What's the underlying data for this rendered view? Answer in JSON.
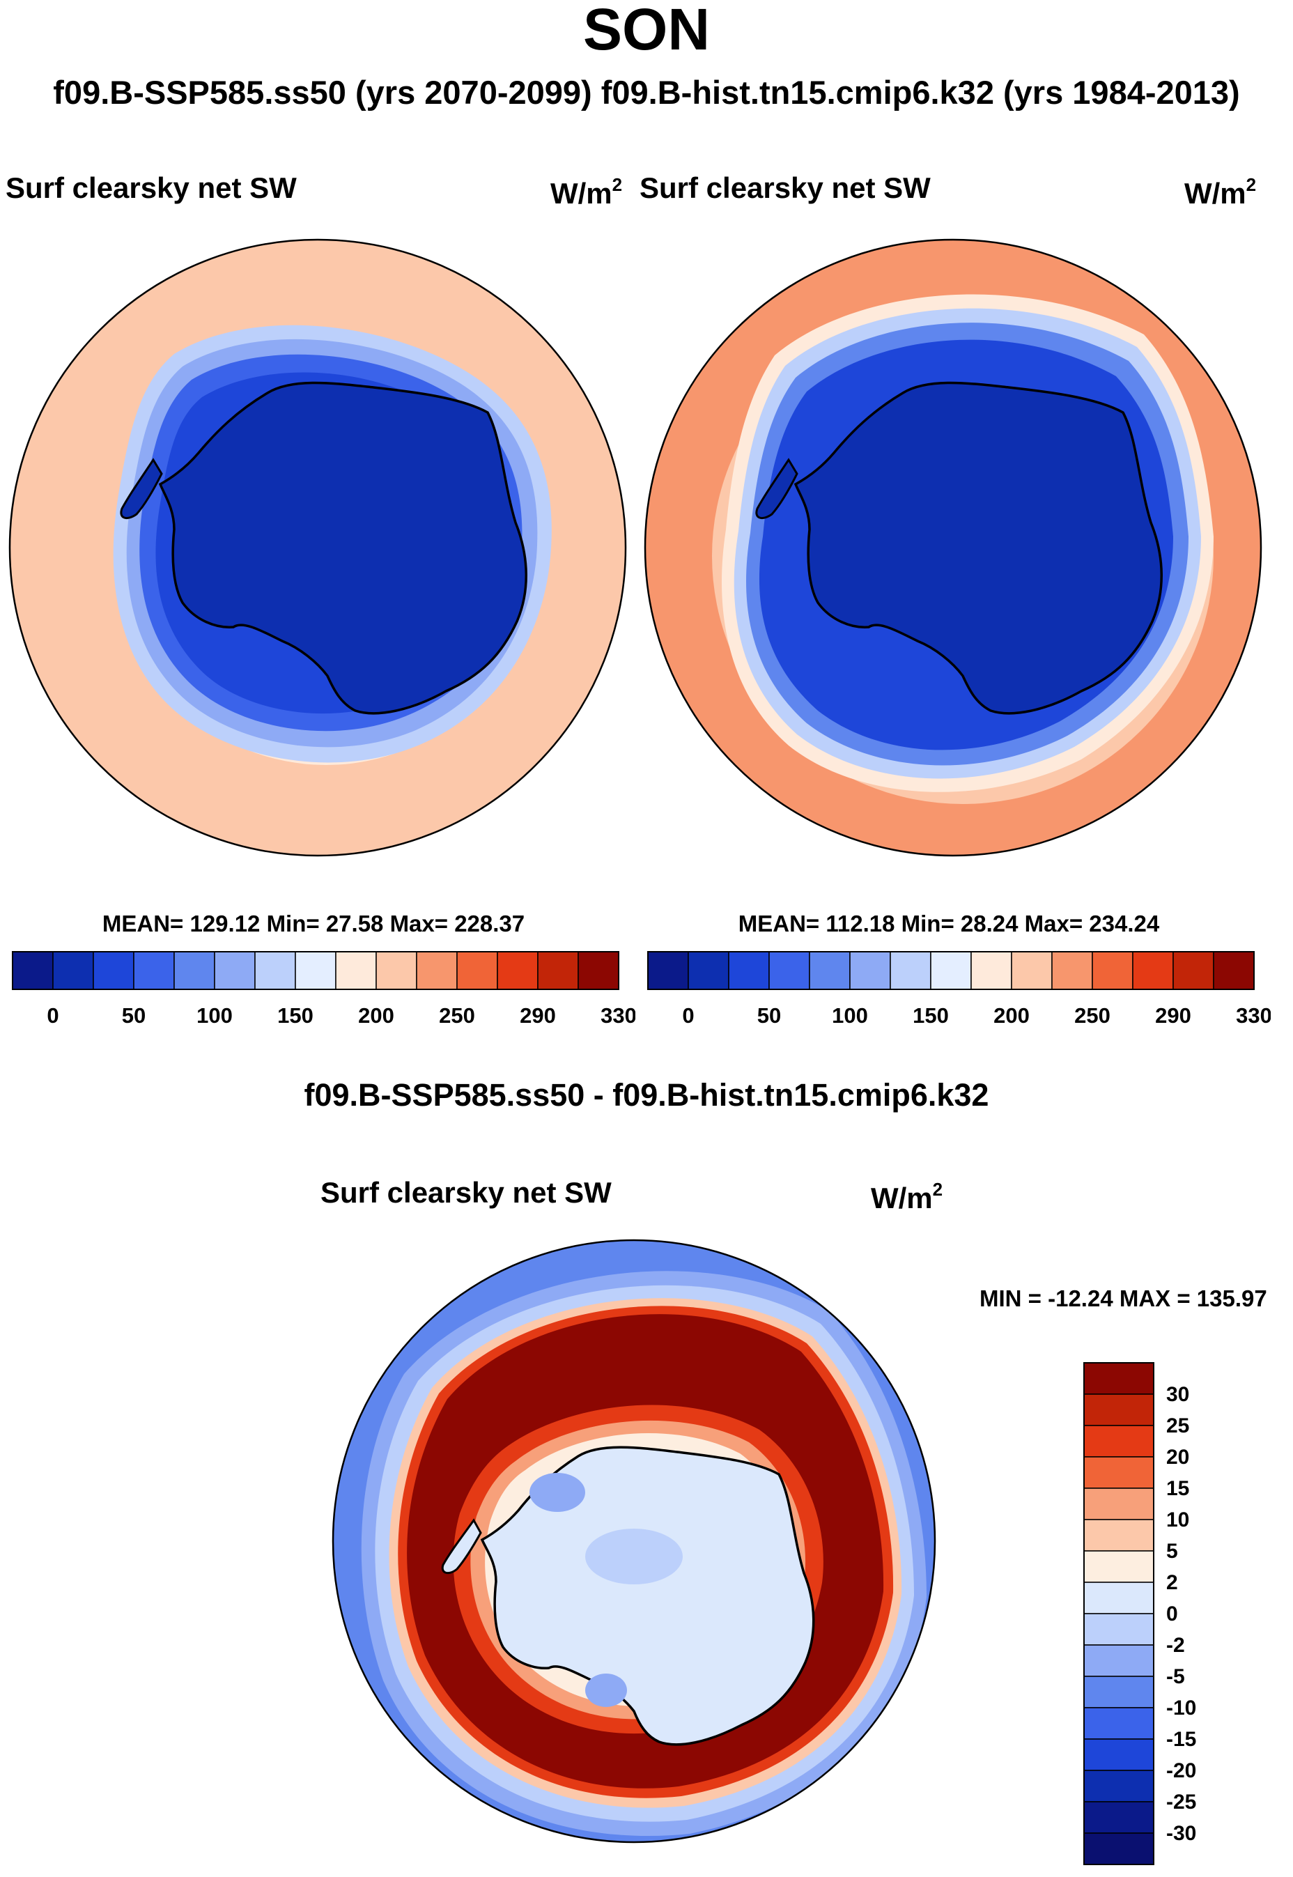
{
  "page": {
    "title": "SON",
    "subtitle": "f09.B-SSP585.ss50 (yrs 2070-2099)  f09.B-hist.tn15.cmip6.k32 (yrs 1984-2013)"
  },
  "colors": {
    "abs_palette": [
      "#0b1a8a",
      "#0d2fb0",
      "#1e46d9",
      "#3b63ea",
      "#5f86ee",
      "#8eaaf5",
      "#bcd0fb",
      "#e4eeff",
      "#feeadb",
      "#fcc8aa",
      "#f7966d",
      "#f06437",
      "#e43a15",
      "#c22508",
      "#8c0702"
    ],
    "diff_palette": [
      "#0b1a8a",
      "#0d2fb0",
      "#1e46d9",
      "#3b63ea",
      "#5f86ee",
      "#8eaaf5",
      "#bcd0fb",
      "#dbe8fc",
      "#fdeee0",
      "#fcc8aa",
      "#f7a07a",
      "#f06437",
      "#e43a15",
      "#c22508",
      "#8c0702"
    ]
  },
  "chart_data": [
    {
      "type": "heatmap",
      "projection": "south-polar-stereographic",
      "variable": "Surf clearsky net SW",
      "units_base": "W/m",
      "units_exp": "2",
      "stats": "MEAN= 129.12  Min=  27.58  Max= 228.37",
      "mean": 129.12,
      "min": 27.58,
      "max": 228.37,
      "colorbar_ticks": [
        "0",
        "50",
        "100",
        "150",
        "200",
        "250",
        "290",
        "330"
      ],
      "colorbar_levels": [
        0,
        20,
        50,
        80,
        100,
        120,
        150,
        180,
        200,
        220,
        250,
        270,
        290,
        310,
        330
      ],
      "ocean_ring_level": "200-220"
    },
    {
      "type": "heatmap",
      "projection": "south-polar-stereographic",
      "variable": "Surf clearsky net SW",
      "units_base": "W/m",
      "units_exp": "2",
      "stats": "MEAN= 112.18  Min=  28.24  Max= 234.24",
      "mean": 112.18,
      "min": 28.24,
      "max": 234.24,
      "colorbar_ticks": [
        "0",
        "50",
        "100",
        "150",
        "200",
        "250",
        "290",
        "330"
      ],
      "colorbar_levels": [
        0,
        20,
        50,
        80,
        100,
        120,
        150,
        180,
        200,
        220,
        250,
        270,
        290,
        310,
        330
      ],
      "ocean_ring_level": "220-250"
    },
    {
      "type": "heatmap",
      "projection": "south-polar-stereographic",
      "title": "f09.B-SSP585.ss50 - f09.B-hist.tn15.cmip6.k32",
      "variable": "Surf clearsky net SW",
      "units_base": "W/m",
      "units_exp": "2",
      "stats": "MIN = -12.24 MAX = 135.97",
      "min": -12.24,
      "max": 135.97,
      "colorbar_ticks": [
        "30",
        "25",
        "20",
        "15",
        "10",
        "5",
        "2",
        "0",
        "-2",
        "-5",
        "-10",
        "-15",
        "-20",
        "-25",
        "-30"
      ],
      "colorbar_levels": [
        30,
        25,
        20,
        15,
        10,
        5,
        2,
        0,
        -2,
        -5,
        -10,
        -15,
        -20,
        -25,
        -30
      ]
    }
  ]
}
